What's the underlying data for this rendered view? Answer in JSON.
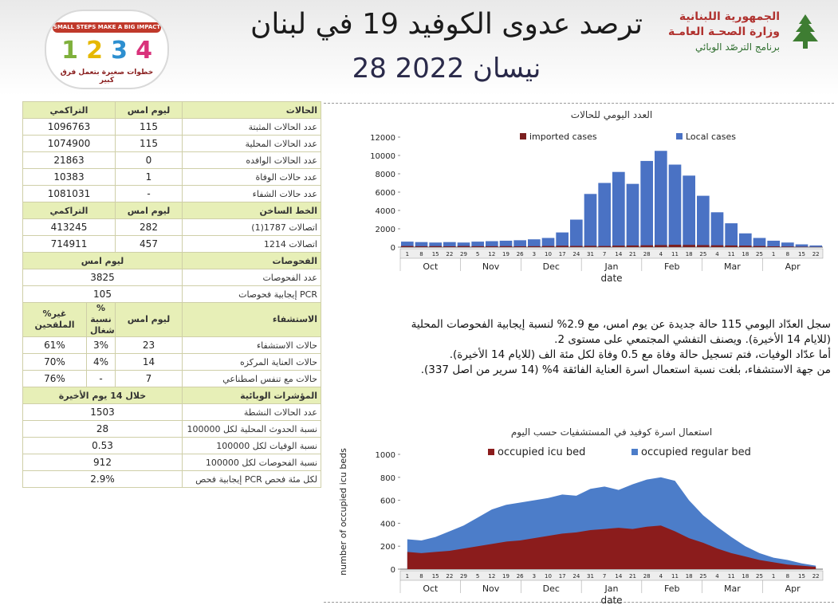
{
  "header": {
    "title": "ترصد عدوى الكوفيد 19 في لبنان",
    "date": "28 نيسان 2022",
    "ministry_line1": "الجمهورية اللبنانية",
    "ministry_line2": "وزارة الصحـة العامـة",
    "ministry_line3": "برنامج الترصّد الوبائي",
    "logo_band": "SMALL STEPS MAKE A BIG IMPACT",
    "logo_nums": [
      "1",
      "2",
      "3",
      "4"
    ],
    "logo_tagline": "خطوات صغيرة بتعمل فرق كبير",
    "colors": {
      "red": "#b0322f",
      "green": "#2f6e2f"
    }
  },
  "cases": {
    "headers": {
      "label": "الحالات",
      "yesterday": "ليوم امس",
      "cumulative": "التراكمي"
    },
    "rows": [
      {
        "label": "عدد الحالات المثبتة",
        "yesterday": "115",
        "cumulative": "1096763"
      },
      {
        "label": "عدد الحالات المحلية",
        "yesterday": "115",
        "cumulative": "1074900"
      },
      {
        "label": "عدد الحالات الوافده",
        "yesterday": "0",
        "cumulative": "21863"
      },
      {
        "label": "عدد حالات الوفاة",
        "yesterday": "1",
        "cumulative": "10383"
      },
      {
        "label": "عدد حالات الشفاء",
        "yesterday": "-",
        "cumulative": "1081031"
      }
    ]
  },
  "hotline": {
    "headers": {
      "label": "الخط الساخن",
      "yesterday": "ليوم امس",
      "cumulative": "التراكمي"
    },
    "rows": [
      {
        "label": "اتصالات 1787(1)",
        "yesterday": "282",
        "cumulative": "413245"
      },
      {
        "label": "اتصالات 1214",
        "yesterday": "457",
        "cumulative": "714911"
      }
    ]
  },
  "tests": {
    "headers": {
      "label": "الفحوصات",
      "yesterday": "ليوم امس"
    },
    "rows": [
      {
        "label": "عدد الفحوصات",
        "value": "3825"
      },
      {
        "label": "إيجابية فحوصات PCR",
        "value": "105"
      }
    ]
  },
  "hospital": {
    "headers": {
      "label": "الاستشفاء",
      "yesterday": "ليوم امس",
      "occupancy": "% نسبة الاشغال",
      "unvaccinated": "%غير الملقحين"
    },
    "rows": [
      {
        "label": "حالات الاستشفاء",
        "yesterday": "23",
        "occupancy": "3%",
        "unvaccinated": "61%"
      },
      {
        "label": "حالات العناية المركزه",
        "yesterday": "14",
        "occupancy": "4%",
        "unvaccinated": "70%"
      },
      {
        "label": "حالات مع تنفس اصطناعي",
        "yesterday": "7",
        "occupancy": "-",
        "unvaccinated": "76%"
      }
    ]
  },
  "indicators": {
    "headers": {
      "label": "المؤشرات الوبائية",
      "period": "خلال 14 يوم الأخيرة"
    },
    "rows": [
      {
        "label": "عدد الحالات النشطة",
        "value": "1503"
      },
      {
        "label": "نسبة الحدوث المحلية لكل 100000",
        "value": "28"
      },
      {
        "label": "نسبة الوفيات لكل 100000",
        "value": "0.53"
      },
      {
        "label": "نسبة الفحوصات لكل 100000",
        "value": "912"
      },
      {
        "label": "إيجابية فحص PCR لكل مئة فحص",
        "value": "2.9%"
      }
    ]
  },
  "summary": {
    "lines": [
      "سجل العدّاد اليومي 115 حالة جديدة عن يوم امس، مع 2.9% لنسبة إيجابية الفحوصات المحلية",
      "(للايام 14 الأخيرة). ويصنف التفشي المجتمعي على مستوى 2.",
      "أما عدّاد الوفيات، فتم تسجيل حالة وفاة مع 0.5 وفاة لكل مئة الف (للايام 14 الأخيرة).",
      "من جهة الاستشفاء، بلغت نسبة استعمال اسرة العناية الفائقة 4% (14 سرير من اصل 337)."
    ]
  },
  "chart_data": [
    {
      "type": "bar",
      "title": "العدد اليومي للحالات",
      "xlabel": "date",
      "ylabel": "",
      "ylim": [
        0,
        12000
      ],
      "yticks": [
        0,
        2000,
        4000,
        6000,
        8000,
        10000,
        12000
      ],
      "months": [
        "Oct",
        "Nov",
        "Dec",
        "Jan",
        "Feb",
        "Mar",
        "Apr"
      ],
      "day_ticks": [
        "1",
        "8",
        "15",
        "22",
        "29",
        "5",
        "12",
        "19",
        "26",
        "3",
        "10",
        "17",
        "24",
        "31",
        "7",
        "14",
        "21",
        "28",
        "4",
        "11",
        "18",
        "25",
        "4",
        "11",
        "18",
        "25",
        "1",
        "8",
        "15",
        "22"
      ],
      "legend_position": "top",
      "series": [
        {
          "name": "imported cases",
          "color": "#7b1f1f",
          "values": [
            120,
            100,
            110,
            90,
            120,
            100,
            100,
            110,
            90,
            100,
            120,
            150,
            130,
            140,
            120,
            160,
            180,
            200,
            220,
            260,
            240,
            220,
            200,
            180,
            160,
            120,
            80,
            60,
            40,
            20
          ]
        },
        {
          "name": "Local cases",
          "color": "#4a72c4",
          "values": [
            600,
            550,
            500,
            550,
            500,
            600,
            650,
            700,
            750,
            850,
            1000,
            1600,
            3000,
            5800,
            7000,
            8200,
            6900,
            9400,
            10500,
            9000,
            7800,
            5600,
            3800,
            2600,
            1500,
            1000,
            700,
            500,
            300,
            180
          ]
        }
      ]
    },
    {
      "type": "area",
      "title": "استعمال اسرة كوفيد في المستشفيات حسب اليوم",
      "xlabel": "date",
      "ylabel": "number of occupied icu beds",
      "ylim": [
        0,
        1000
      ],
      "yticks": [
        0,
        200,
        400,
        600,
        800,
        1000
      ],
      "months": [
        "Oct",
        "Nov",
        "Dec",
        "Jan",
        "Feb",
        "Mar",
        "Apr"
      ],
      "day_ticks": [
        "1",
        "8",
        "15",
        "22",
        "29",
        "5",
        "12",
        "19",
        "26",
        "3",
        "10",
        "17",
        "24",
        "31",
        "7",
        "14",
        "21",
        "28",
        "4",
        "11",
        "18",
        "25",
        "4",
        "11",
        "18",
        "25",
        "1",
        "8",
        "15",
        "22"
      ],
      "legend_position": "top",
      "series": [
        {
          "name": "occupied icu bed",
          "color": "#8b1c1c",
          "values": [
            150,
            140,
            150,
            160,
            180,
            200,
            220,
            240,
            250,
            270,
            290,
            310,
            320,
            340,
            350,
            360,
            350,
            370,
            380,
            330,
            270,
            230,
            180,
            140,
            110,
            80,
            60,
            40,
            30,
            20
          ]
        },
        {
          "name": "occupied regular bed",
          "color": "#4c7dc9",
          "values": [
            260,
            250,
            280,
            330,
            380,
            450,
            520,
            560,
            580,
            600,
            620,
            650,
            640,
            700,
            720,
            690,
            740,
            780,
            800,
            770,
            600,
            470,
            370,
            280,
            200,
            140,
            100,
            80,
            50,
            30
          ]
        }
      ]
    }
  ]
}
